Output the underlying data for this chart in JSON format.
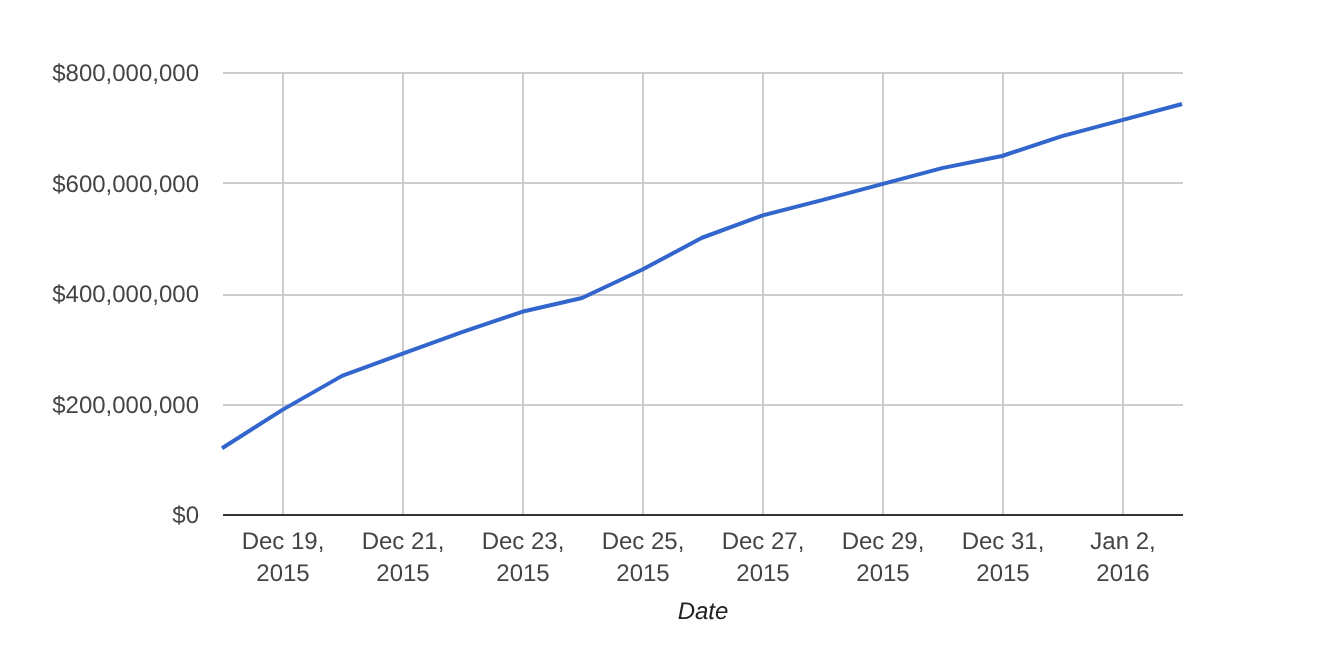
{
  "chart_data": {
    "type": "line",
    "xlabel": "Date",
    "x": [
      "2015-12-18",
      "2015-12-19",
      "2015-12-20",
      "2015-12-21",
      "2015-12-22",
      "2015-12-23",
      "2015-12-24",
      "2015-12-25",
      "2015-12-26",
      "2015-12-27",
      "2015-12-28",
      "2015-12-29",
      "2015-12-30",
      "2015-12-31",
      "2016-01-01",
      "2016-01-02",
      "2016-01-03"
    ],
    "series": [
      {
        "color": "#3366cc",
        "values": [
          119000000,
          188000000,
          250000000,
          290000000,
          329000000,
          366000000,
          391000000,
          442000000,
          500000000,
          540000000,
          568000000,
          597000000,
          626000000,
          648000000,
          684000000,
          713000000,
          742000000
        ]
      }
    ],
    "xlim": [
      "2015-12-18",
      "2016-01-03"
    ],
    "xticks": [
      {
        "value": "2015-12-19",
        "label": "Dec 19, 2015"
      },
      {
        "value": "2015-12-21",
        "label": "Dec 21, 2015"
      },
      {
        "value": "2015-12-23",
        "label": "Dec 23, 2015"
      },
      {
        "value": "2015-12-25",
        "label": "Dec 25, 2015"
      },
      {
        "value": "2015-12-27",
        "label": "Dec 27, 2015"
      },
      {
        "value": "2015-12-29",
        "label": "Dec 29, 2015"
      },
      {
        "value": "2015-12-31",
        "label": "Dec 31, 2015"
      },
      {
        "value": "2016-01-02",
        "label": "Jan 2, 2016"
      }
    ],
    "ylim": [
      0,
      800000000
    ],
    "yticks": [
      {
        "value": 0,
        "label": "$0"
      },
      {
        "value": 200000000,
        "label": "$200,000,000"
      },
      {
        "value": 400000000,
        "label": "$400,000,000"
      },
      {
        "value": 600000000,
        "label": "$600,000,000"
      },
      {
        "value": 800000000,
        "label": "$800,000,000"
      }
    ],
    "grid": true,
    "line_style": "solid",
    "marker": "none"
  }
}
